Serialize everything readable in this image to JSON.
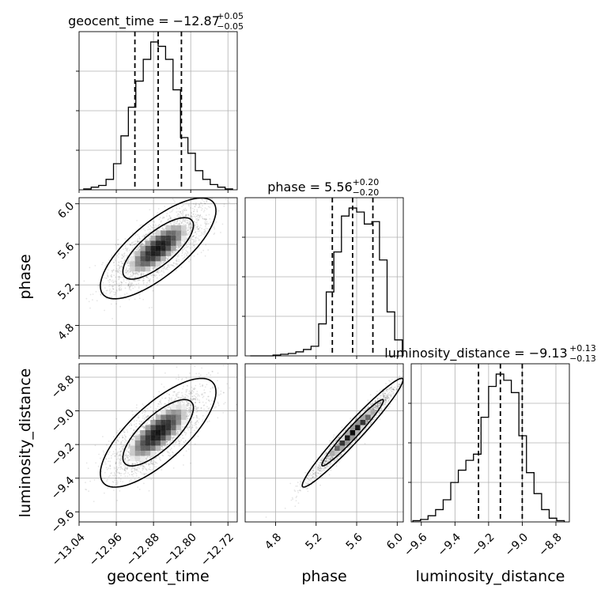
{
  "chart_data": {
    "type": "corner",
    "parameters": [
      "geocent_time",
      "phase",
      "luminosity_distance"
    ],
    "titles": [
      {
        "param": "geocent_time",
        "median": "−12.87",
        "plus": "+0.05",
        "minus": "−0.05"
      },
      {
        "param": "phase",
        "median": "5.56",
        "plus": "+0.20",
        "minus": "−0.20"
      },
      {
        "param": "luminosity_distance",
        "median": "−9.13",
        "plus": "+0.13",
        "minus": "−0.13"
      }
    ],
    "ranges": {
      "geocent_time": [
        -13.04,
        -12.7
      ],
      "phase": [
        4.5,
        6.06
      ],
      "luminosity_distance": [
        -9.66,
        -8.72
      ]
    },
    "tick_values": {
      "geocent_time": [
        -13.04,
        -12.96,
        -12.88,
        -12.8,
        -12.72
      ],
      "phase": [
        4.8,
        5.2,
        5.6,
        6.0
      ],
      "luminosity_distance": [
        -9.6,
        -9.4,
        -9.2,
        -9.0,
        -8.8
      ]
    },
    "tick_labels": {
      "geocent_time": [
        "−13.04",
        "−12.96",
        "−12.88",
        "−12.80",
        "−12.72"
      ],
      "phase": [
        "4.8",
        "5.2",
        "5.6",
        "6.0"
      ],
      "luminosity_distance": [
        "−9.6",
        "−9.4",
        "−9.2",
        "−9.0",
        "−8.8"
      ]
    },
    "axis_labels": {
      "x": [
        "geocent_time",
        "phase",
        "luminosity_distance"
      ],
      "y": [
        "phase",
        "luminosity_distance"
      ]
    },
    "histograms": [
      {
        "param": "geocent_time",
        "bin_edges": [
          -13.03,
          -13.014,
          -12.998,
          -12.982,
          -12.966,
          -12.95,
          -12.934,
          -12.918,
          -12.902,
          -12.886,
          -12.87,
          -12.854,
          -12.838,
          -12.822,
          -12.806,
          -12.79,
          -12.774,
          -12.758,
          -12.742,
          -12.726,
          -12.71
        ],
        "counts": [
          1,
          3,
          5,
          12,
          30,
          62,
          95,
          125,
          150,
          170,
          165,
          150,
          115,
          60,
          42,
          22,
          12,
          6,
          3,
          1
        ],
        "quantiles": [
          -12.92,
          -12.87,
          -12.82
        ]
      },
      {
        "param": "phase",
        "bin_edges": [
          4.55,
          4.625,
          4.7,
          4.775,
          4.85,
          4.925,
          5.0,
          5.075,
          5.15,
          5.225,
          5.3,
          5.375,
          5.45,
          5.525,
          5.6,
          5.675,
          5.75,
          5.825,
          5.9,
          5.975,
          6.05
        ],
        "counts": [
          0,
          0,
          0,
          1,
          2,
          3,
          5,
          8,
          12,
          40,
          80,
          130,
          175,
          185,
          180,
          165,
          168,
          120,
          55,
          20
        ],
        "quantiles": [
          5.36,
          5.56,
          5.76
        ]
      },
      {
        "param": "luminosity_distance",
        "bin_edges": [
          -9.65,
          -9.605,
          -9.56,
          -9.515,
          -9.47,
          -9.425,
          -9.38,
          -9.335,
          -9.29,
          -9.245,
          -9.2,
          -9.155,
          -9.11,
          -9.065,
          -9.02,
          -8.975,
          -8.93,
          -8.885,
          -8.84,
          -8.795,
          -8.75
        ],
        "counts": [
          1,
          2,
          5,
          10,
          18,
          32,
          42,
          50,
          55,
          85,
          110,
          120,
          115,
          105,
          70,
          40,
          23,
          10,
          3,
          1
        ],
        "quantiles": [
          -9.26,
          -9.13,
          -9.0
        ]
      }
    ],
    "joint_2d": [
      {
        "x": "geocent_time",
        "y": "phase",
        "mean": [
          -12.87,
          5.56
        ],
        "sigma": [
          0.05,
          0.2
        ],
        "correlation": 0.75
      },
      {
        "x": "geocent_time",
        "y": "luminosity_distance",
        "mean": [
          -12.87,
          -9.13
        ],
        "sigma": [
          0.05,
          0.13
        ],
        "correlation": 0.75
      },
      {
        "x": "phase",
        "y": "luminosity_distance",
        "mean": [
          5.56,
          -9.13
        ],
        "sigma": [
          0.2,
          0.13
        ],
        "correlation": 0.97
      }
    ],
    "contour_levels_sigma": [
      1,
      2
    ],
    "grid": true
  }
}
